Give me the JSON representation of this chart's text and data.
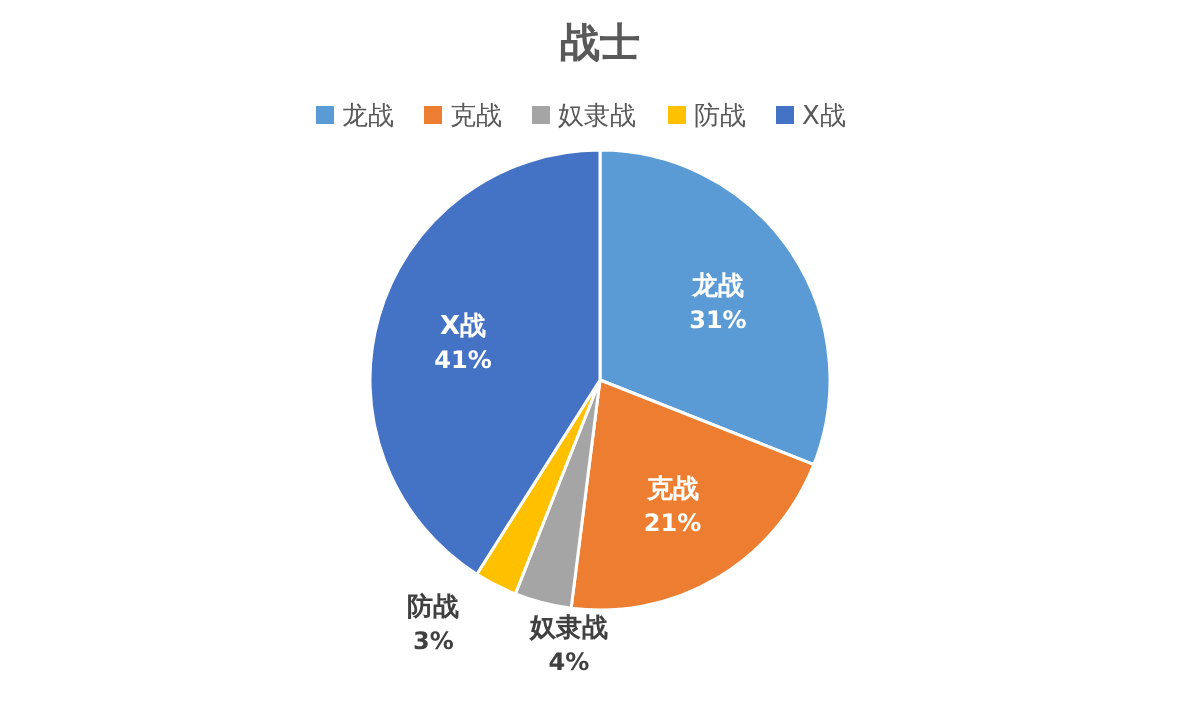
{
  "chart_data": {
    "type": "pie",
    "title": "战士",
    "categories": [
      "龙战",
      "克战",
      "奴隶战",
      "防战",
      "X战"
    ],
    "values": [
      31,
      21,
      4,
      3,
      41
    ],
    "colors": [
      "#5b9bd5",
      "#ed7d31",
      "#a5a5a5",
      "#ffc000",
      "#4472c4"
    ],
    "legend": "top",
    "value_labels": [
      "31%",
      "21%",
      "4%",
      "3%",
      "41%"
    ]
  }
}
